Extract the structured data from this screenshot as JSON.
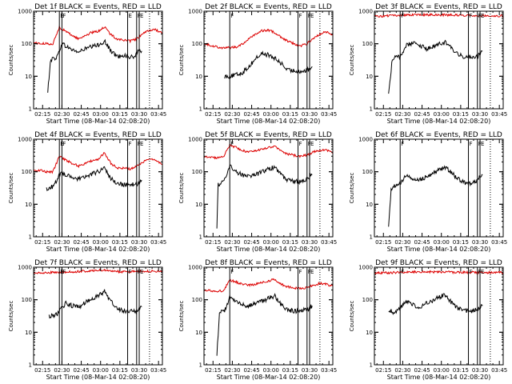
{
  "figure": {
    "colors": {
      "events": "#000000",
      "lld": "#dd0000",
      "background": "#ffffff"
    },
    "x_tick_labels": [
      "02:15",
      "02:30",
      "02:45",
      "03:00",
      "03:15",
      "03:30",
      "03:45"
    ],
    "y_tick_labels": [
      "1",
      "10",
      "100",
      "1000"
    ]
  },
  "chart_data": [
    {
      "type": "line",
      "title": "Det 1f BLACK = Events, RED = LLD",
      "xlabel": "Start Time (08-Mar-14 02:08:20)",
      "ylabel": "Counts/sec",
      "x_unit": "minutes after 02:08:20",
      "xlim": [
        0,
        100
      ],
      "ylim": [
        1,
        1000
      ],
      "yscale": "log",
      "grid": false,
      "markers": [
        {
          "t": 20,
          "label": "E"
        },
        {
          "t": 22,
          "label": "F"
        },
        {
          "t": 73,
          "label": "E"
        },
        {
          "t": 80,
          "label": "F"
        },
        {
          "t": 82,
          "label": "E"
        }
      ],
      "end_line": 90,
      "series": [
        {
          "name": "Events",
          "t": [
            11,
            13,
            15,
            18,
            22,
            26,
            30,
            35,
            40,
            45,
            50,
            55,
            60,
            65,
            70,
            75,
            78,
            81,
            84
          ],
          "values": [
            3,
            30,
            35,
            38,
            100,
            80,
            65,
            55,
            70,
            80,
            90,
            120,
            60,
            40,
            45,
            38,
            40,
            55,
            60
          ]
        },
        {
          "name": "LLD",
          "t": [
            0,
            5,
            10,
            15,
            20,
            25,
            30,
            35,
            40,
            45,
            50,
            55,
            60,
            65,
            70,
            75,
            80,
            85,
            90,
            95,
            100
          ],
          "values": [
            110,
            100,
            100,
            100,
            320,
            240,
            180,
            140,
            180,
            220,
            240,
            330,
            190,
            140,
            130,
            120,
            140,
            200,
            260,
            270,
            200
          ]
        }
      ]
    },
    {
      "type": "line",
      "title": "Det 2f BLACK = Events, RED = LLD",
      "xlabel": "Start Time (08-Mar-14 02:08:20)",
      "ylabel": "Counts/sec",
      "x_unit": "minutes after 02:08:20",
      "xlim": [
        0,
        100
      ],
      "ylim": [
        1,
        1000
      ],
      "yscale": "log",
      "grid": false,
      "markers": [
        {
          "t": 20,
          "label": "F"
        },
        {
          "t": 73,
          "label": "F"
        },
        {
          "t": 80,
          "label": "F"
        },
        {
          "t": 82,
          "label": "E"
        }
      ],
      "end_line": 90,
      "series": [
        {
          "name": "Events",
          "t": [
            16,
            20,
            25,
            30,
            35,
            40,
            45,
            50,
            55,
            60,
            65,
            70,
            75,
            80,
            84
          ],
          "values": [
            10,
            10,
            11,
            13,
            20,
            35,
            50,
            45,
            35,
            25,
            15,
            15,
            14,
            15,
            20
          ]
        },
        {
          "name": "LLD",
          "t": [
            0,
            5,
            10,
            15,
            20,
            25,
            30,
            35,
            40,
            45,
            50,
            55,
            60,
            65,
            70,
            75,
            80,
            85,
            90,
            95,
            100
          ],
          "values": [
            100,
            90,
            80,
            75,
            75,
            80,
            100,
            140,
            200,
            250,
            260,
            220,
            160,
            120,
            100,
            85,
            100,
            150,
            200,
            230,
            180
          ]
        }
      ]
    },
    {
      "type": "line",
      "title": "Det 3f BLACK = Events, RED = LLD",
      "xlabel": "Start Time (08-Mar-14 02:08:20)",
      "ylabel": "Counts/sec",
      "x_unit": "minutes after 02:08:20",
      "xlim": [
        0,
        100
      ],
      "ylim": [
        1,
        1000
      ],
      "yscale": "log",
      "grid": false,
      "markers": [
        {
          "t": 20,
          "label": "F"
        },
        {
          "t": 73,
          "label": "F"
        },
        {
          "t": 80,
          "label": "F"
        },
        {
          "t": 82,
          "label": "E"
        }
      ],
      "end_line": 90,
      "series": [
        {
          "name": "Events",
          "t": [
            11,
            14,
            20,
            25,
            30,
            35,
            40,
            45,
            50,
            55,
            60,
            65,
            70,
            75,
            80,
            84
          ],
          "values": [
            3,
            35,
            40,
            90,
            110,
            90,
            70,
            80,
            95,
            110,
            70,
            45,
            40,
            40,
            40,
            60
          ]
        },
        {
          "name": "LLD",
          "t": [
            0,
            20,
            40,
            60,
            80,
            100
          ],
          "values": [
            700,
            750,
            780,
            760,
            740,
            720
          ]
        }
      ]
    },
    {
      "type": "line",
      "title": "Det 4f BLACK = Events, RED = LLD",
      "xlabel": "Start Time (08-Mar-14 02:08:20)",
      "ylabel": "Counts/sec",
      "x_unit": "minutes after 02:08:20",
      "xlim": [
        0,
        100
      ],
      "ylim": [
        1,
        1000
      ],
      "yscale": "log",
      "grid": false,
      "markers": [
        {
          "t": 20,
          "label": "E"
        },
        {
          "t": 22,
          "label": "F"
        },
        {
          "t": 73,
          "label": "F"
        },
        {
          "t": 80,
          "label": "F"
        },
        {
          "t": 82,
          "label": "E"
        }
      ],
      "end_line": 90,
      "series": [
        {
          "name": "Events",
          "t": [
            10,
            13,
            16,
            20,
            25,
            30,
            35,
            40,
            45,
            50,
            55,
            60,
            65,
            70,
            75,
            80,
            84
          ],
          "values": [
            30,
            32,
            38,
            90,
            80,
            70,
            60,
            70,
            85,
            100,
            130,
            60,
            45,
            40,
            40,
            40,
            55
          ]
        },
        {
          "name": "LLD",
          "t": [
            0,
            5,
            10,
            15,
            20,
            25,
            30,
            35,
            40,
            45,
            50,
            55,
            60,
            65,
            70,
            75,
            80,
            85,
            90,
            95,
            100
          ],
          "values": [
            110,
            110,
            100,
            100,
            300,
            230,
            180,
            150,
            180,
            220,
            240,
            380,
            180,
            130,
            130,
            120,
            150,
            200,
            260,
            230,
            170
          ]
        }
      ]
    },
    {
      "type": "line",
      "title": "Det 5f BLACK = Events, RED = LLD",
      "xlabel": "Start Time (08-Mar-14 02:08:20)",
      "ylabel": "Counts/sec",
      "x_unit": "minutes after 02:08:20",
      "xlim": [
        0,
        100
      ],
      "ylim": [
        1,
        1000
      ],
      "yscale": "log",
      "grid": false,
      "markers": [
        {
          "t": 20,
          "label": "F"
        },
        {
          "t": 73,
          "label": "F"
        },
        {
          "t": 80,
          "label": "F"
        },
        {
          "t": 82,
          "label": "E"
        }
      ],
      "end_line": 90,
      "series": [
        {
          "name": "Events",
          "t": [
            10,
            11,
            13,
            16,
            20,
            25,
            30,
            35,
            40,
            45,
            50,
            55,
            60,
            65,
            70,
            75,
            80,
            84
          ],
          "values": [
            2,
            40,
            45,
            60,
            150,
            100,
            80,
            70,
            80,
            100,
            120,
            140,
            80,
            55,
            50,
            50,
            60,
            80
          ]
        },
        {
          "name": "LLD",
          "t": [
            0,
            5,
            10,
            15,
            20,
            25,
            30,
            35,
            40,
            45,
            50,
            55,
            60,
            65,
            70,
            75,
            80,
            85,
            90,
            95,
            100
          ],
          "values": [
            300,
            280,
            270,
            290,
            650,
            550,
            450,
            400,
            430,
            500,
            550,
            600,
            420,
            350,
            320,
            300,
            330,
            400,
            460,
            450,
            380
          ]
        }
      ]
    },
    {
      "type": "line",
      "title": "Det 6f BLACK = Events, RED = LLD",
      "xlabel": "Start Time (08-Mar-14 02:08:20)",
      "ylabel": "Counts/sec",
      "x_unit": "minutes after 02:08:20",
      "xlim": [
        0,
        100
      ],
      "ylim": [
        1,
        1000
      ],
      "yscale": "log",
      "grid": false,
      "markers": [
        {
          "t": 20,
          "label": "F"
        },
        {
          "t": 73,
          "label": "F"
        },
        {
          "t": 80,
          "label": "F"
        },
        {
          "t": 82,
          "label": "E"
        }
      ],
      "end_line": 90,
      "series": [
        {
          "name": "Events",
          "t": [
            11,
            13,
            17,
            20,
            25,
            30,
            35,
            40,
            45,
            50,
            55,
            60,
            65,
            70,
            75,
            80,
            84
          ],
          "values": [
            2,
            30,
            40,
            45,
            75,
            60,
            55,
            70,
            90,
            110,
            140,
            90,
            60,
            45,
            45,
            55,
            80
          ]
        }
      ]
    },
    {
      "type": "line",
      "title": "Det 7f BLACK = Events, RED = LLD",
      "xlabel": "Start Time (08-Mar-14 02:08:20)",
      "ylabel": "Counts/sec",
      "x_unit": "minutes after 02:08:20",
      "xlim": [
        0,
        100
      ],
      "ylim": [
        1,
        1000
      ],
      "yscale": "log",
      "grid": false,
      "markers": [
        {
          "t": 20,
          "label": "E"
        },
        {
          "t": 22,
          "label": "F"
        },
        {
          "t": 73,
          "label": "F"
        },
        {
          "t": 80,
          "label": "F"
        },
        {
          "t": 82,
          "label": "E"
        }
      ],
      "end_line": 90,
      "series": [
        {
          "name": "Events",
          "t": [
            12,
            15,
            18,
            20,
            25,
            30,
            35,
            40,
            45,
            50,
            55,
            60,
            65,
            70,
            75,
            80,
            84
          ],
          "values": [
            30,
            32,
            35,
            45,
            80,
            65,
            60,
            80,
            110,
            130,
            180,
            90,
            55,
            45,
            45,
            45,
            60
          ]
        },
        {
          "name": "LLD",
          "t": [
            0,
            10,
            20,
            30,
            40,
            50,
            60,
            70,
            80,
            90,
            100
          ],
          "values": [
            650,
            680,
            700,
            720,
            760,
            820,
            760,
            720,
            740,
            760,
            720
          ]
        }
      ]
    },
    {
      "type": "line",
      "title": "Det 8f BLACK = Events, RED = LLD",
      "xlabel": "Start Time (08-Mar-14 02:08:20)",
      "ylabel": "Counts/sec",
      "x_unit": "minutes after 02:08:20",
      "xlim": [
        0,
        100
      ],
      "ylim": [
        1,
        1000
      ],
      "yscale": "log",
      "grid": false,
      "markers": [
        {
          "t": 20,
          "label": "F"
        },
        {
          "t": 73,
          "label": "F"
        },
        {
          "t": 80,
          "label": "F"
        },
        {
          "t": 82,
          "label": "E"
        }
      ],
      "end_line": 90,
      "series": [
        {
          "name": "Events",
          "t": [
            10,
            12,
            16,
            20,
            25,
            30,
            35,
            40,
            45,
            50,
            55,
            60,
            65,
            70,
            75,
            80,
            84
          ],
          "values": [
            2,
            40,
            45,
            120,
            90,
            70,
            65,
            75,
            90,
            110,
            130,
            70,
            50,
            45,
            45,
            50,
            65
          ]
        },
        {
          "name": "LLD",
          "t": [
            0,
            5,
            10,
            15,
            20,
            25,
            30,
            35,
            40,
            45,
            50,
            55,
            60,
            65,
            70,
            75,
            80,
            85,
            90,
            95,
            100
          ],
          "values": [
            200,
            190,
            180,
            190,
            400,
            350,
            300,
            280,
            300,
            340,
            380,
            420,
            300,
            250,
            230,
            220,
            240,
            280,
            320,
            300,
            260
          ]
        }
      ]
    },
    {
      "type": "line",
      "title": "Det 9f BLACK = Events, RED = LLD",
      "xlabel": "Start Time (08-Mar-14 02:08:20)",
      "ylabel": "Counts/sec",
      "x_unit": "minutes after 02:08:20",
      "xlim": [
        0,
        100
      ],
      "ylim": [
        1,
        1000
      ],
      "yscale": "log",
      "grid": false,
      "markers": [
        {
          "t": 20,
          "label": "F"
        },
        {
          "t": 73,
          "label": "F"
        },
        {
          "t": 80,
          "label": "F"
        },
        {
          "t": 82,
          "label": "E"
        }
      ],
      "end_line": 90,
      "series": [
        {
          "name": "Events",
          "t": [
            11,
            13,
            15,
            20,
            25,
            30,
            35,
            40,
            45,
            50,
            55,
            60,
            65,
            70,
            75,
            80,
            84
          ],
          "values": [
            40,
            45,
            40,
            55,
            90,
            70,
            60,
            75,
            95,
            120,
            140,
            80,
            55,
            45,
            45,
            50,
            65
          ]
        },
        {
          "name": "LLD",
          "t": [
            0,
            20,
            40,
            60,
            80,
            100
          ],
          "values": [
            650,
            700,
            720,
            700,
            690,
            680
          ]
        }
      ]
    }
  ]
}
